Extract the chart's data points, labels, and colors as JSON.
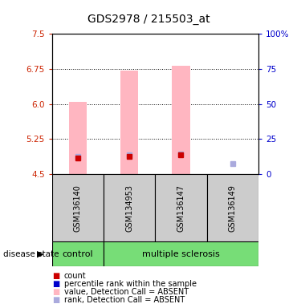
{
  "title": "GDS2978 / 215503_at",
  "samples": [
    "GSM136140",
    "GSM134953",
    "GSM136147",
    "GSM136149"
  ],
  "sample_groups": [
    "control",
    "multiple sclerosis",
    "multiple sclerosis",
    "multiple sclerosis"
  ],
  "ylim_left": [
    4.5,
    7.5
  ],
  "ylim_right": [
    0,
    100
  ],
  "yticks_left": [
    4.5,
    5.25,
    6.0,
    6.75,
    7.5
  ],
  "yticks_right": [
    0,
    25,
    50,
    75,
    100
  ],
  "bar_values": [
    6.05,
    6.72,
    6.82,
    4.5
  ],
  "bar_color": "#ffb6c1",
  "bar_width": 0.35,
  "rank_values": [
    4.87,
    4.91,
    4.93,
    4.72
  ],
  "rank_color": "#aaaadd",
  "rank_size": 4,
  "count_values": [
    4.84,
    4.88,
    4.91,
    null
  ],
  "count_color": "#cc0000",
  "count_size": 4,
  "title_fontsize": 10,
  "tick_fontsize": 7.5,
  "left_tick_color": "#cc2200",
  "right_tick_color": "#0000cc",
  "dotted_grid_color": "#000000",
  "background_color": "#ffffff",
  "grey_box_color": "#cccccc",
  "green_color": "#77dd77",
  "legend_items": [
    {
      "color": "#cc0000",
      "label": "count"
    },
    {
      "color": "#0000cc",
      "label": "percentile rank within the sample"
    },
    {
      "color": "#ffb6c1",
      "label": "value, Detection Call = ABSENT"
    },
    {
      "color": "#aaaadd",
      "label": "rank, Detection Call = ABSENT"
    }
  ]
}
